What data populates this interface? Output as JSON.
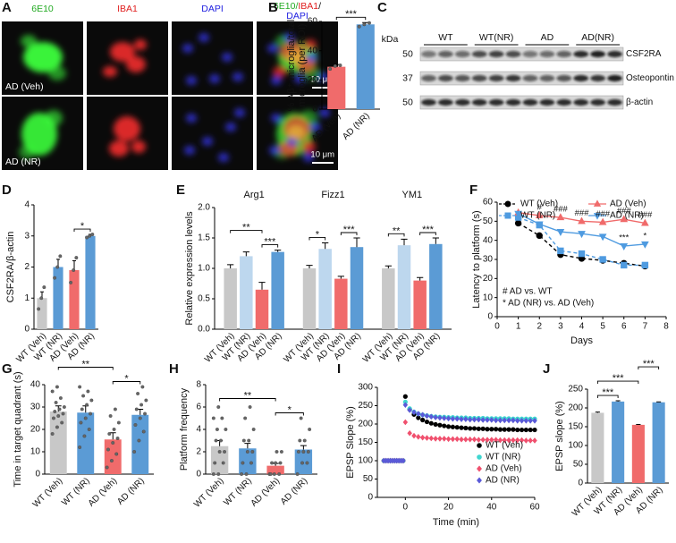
{
  "figure": {
    "panel_A": {
      "letter": "A",
      "channels": [
        "6E10",
        "IBA1",
        "DAPI"
      ],
      "channel_colors": [
        "#22aa22",
        "#e01e1e",
        "#1e1ee0"
      ],
      "merge_label": [
        "6E10/",
        "IBA1",
        "/",
        "DAPI"
      ],
      "rows": [
        "AD (Veh)",
        "AD (NR)"
      ],
      "scale_bar": "10 μm"
    },
    "panel_C": {
      "letter": "C",
      "unit": "kDa",
      "groups": [
        "WT",
        "WT(NR)",
        "AD",
        "AD(NR)"
      ],
      "blots": [
        {
          "protein": "CSF2RA",
          "kda": 50
        },
        {
          "protein": "Osteopontin",
          "kda": 37
        },
        {
          "protein": "β-actin",
          "kda": 50
        }
      ]
    }
  },
  "chart_data": [
    {
      "panel": "B",
      "type": "bar",
      "ylabel": [
        "% Aβ⁺ microglia/total",
        "microglia (per ROI)"
      ],
      "categories": [
        "AD (Veh)",
        "AD (NR)"
      ],
      "values": [
        29,
        58
      ],
      "errors": [
        1.5,
        1.2
      ],
      "points": [
        [
          27.5,
          29.5,
          30
        ],
        [
          56.5,
          58,
          59
        ]
      ],
      "colors": [
        "#f06b6b",
        "#5b9bd5"
      ],
      "ylim": [
        0,
        60
      ],
      "yticks": [
        0,
        20,
        40,
        60
      ],
      "significance": [
        {
          "between": [
            "AD (Veh)",
            "AD (NR)"
          ],
          "label": "***"
        }
      ]
    },
    {
      "panel": "D",
      "type": "bar",
      "ylabel": "CSF2RA/β-actin",
      "categories": [
        "WT (Veh)",
        "WT (NR)",
        "AD (Veh)",
        "AD (NR)"
      ],
      "values": [
        1.0,
        2.0,
        1.9,
        3.0
      ],
      "errors": [
        0.2,
        0.25,
        0.3,
        0.05
      ],
      "points": [
        [
          0.65,
          1.0,
          1.35
        ],
        [
          1.65,
          2.0,
          2.35
        ],
        [
          1.5,
          1.9,
          2.3
        ],
        [
          2.95,
          3.0,
          3.05
        ]
      ],
      "colors": [
        "#c8c8c8",
        "#5b9bd5",
        "#f06b6b",
        "#5b9bd5"
      ],
      "ylim": [
        0,
        4
      ],
      "yticks": [
        0,
        1,
        2,
        3,
        4
      ],
      "significance": [
        {
          "between": [
            "AD (Veh)",
            "AD (NR)"
          ],
          "label": "*"
        }
      ]
    },
    {
      "panel": "E",
      "type": "grouped_bar",
      "ylabel": "Relative expression levels",
      "categories": [
        "Arg1",
        "Fizz1",
        "YM1"
      ],
      "series": [
        {
          "name": "WT (Veh)",
          "color": "#c8c8c8",
          "values": [
            1.0,
            1.0,
            1.0
          ],
          "errors": [
            0.06,
            0.05,
            0.04
          ]
        },
        {
          "name": "WT (NR)",
          "color": "#bdd7ee",
          "values": [
            1.2,
            1.32,
            1.38
          ],
          "errors": [
            0.07,
            0.1,
            0.1
          ]
        },
        {
          "name": "AD (Veh)",
          "color": "#f06b6b",
          "values": [
            0.65,
            0.83,
            0.8
          ],
          "errors": [
            0.12,
            0.04,
            0.05
          ]
        },
        {
          "name": "AD (NR)",
          "color": "#5b9bd5",
          "values": [
            1.27,
            1.35,
            1.4
          ],
          "errors": [
            0.03,
            0.15,
            0.1
          ]
        }
      ],
      "ylim": [
        0,
        2
      ],
      "yticks": [
        {
          "value": 0,
          "label": "0.0"
        },
        0.5,
        {
          "value": 1,
          "label": "1.0"
        },
        1.5,
        {
          "value": 2,
          "label": "2.0"
        }
      ],
      "significance": [
        {
          "category": "Arg1",
          "between": [
            "AD (Veh)",
            "AD (NR)"
          ],
          "label": "***"
        },
        {
          "category": "Arg1",
          "between": [
            "WT (Veh)",
            "AD (Veh)"
          ],
          "label": "**"
        },
        {
          "category": "Fizz1",
          "between": [
            "WT (Veh)",
            "WT (NR)"
          ],
          "label": "*"
        },
        {
          "category": "Fizz1",
          "between": [
            "AD (Veh)",
            "AD (NR)"
          ],
          "label": "***"
        },
        {
          "category": "YM1",
          "between": [
            "WT (Veh)",
            "WT (NR)"
          ],
          "label": "**"
        },
        {
          "category": "YM1",
          "between": [
            "AD (Veh)",
            "AD (NR)"
          ],
          "label": "***"
        }
      ]
    },
    {
      "panel": "F",
      "type": "line",
      "xlabel": "Days",
      "ylabel": "Latency to platform (s)",
      "x": [
        1,
        2,
        3,
        4,
        5,
        6,
        7
      ],
      "xlim": [
        0,
        8
      ],
      "xticks": [
        0,
        1,
        2,
        3,
        4,
        5,
        6,
        7,
        8
      ],
      "ylim": [
        0,
        60
      ],
      "yticks": [
        0,
        10,
        20,
        30,
        40,
        50,
        60
      ],
      "legend": "top",
      "series": [
        {
          "name": "WT (Veh)",
          "color": "#000000",
          "marker": "circle",
          "dashed": true,
          "values": [
            49,
            42.5,
            32.5,
            30.5,
            29.5,
            28,
            26.5
          ]
        },
        {
          "name": "WT (NR)",
          "color": "#4f9be0",
          "marker": "square",
          "dashed": true,
          "values": [
            52,
            48,
            34.5,
            33,
            30,
            27,
            27
          ]
        },
        {
          "name": "AD (Veh)",
          "color": "#f06b6b",
          "marker": "triangle-up",
          "dashed": false,
          "values": [
            54.5,
            53,
            52,
            50,
            49.5,
            51,
            49
          ]
        },
        {
          "name": "AD (NR)",
          "color": "#4f9be0",
          "marker": "triangle-down",
          "dashed": false,
          "values": [
            54,
            48.5,
            44.5,
            43.5,
            42,
            37,
            38
          ]
        }
      ],
      "significance": [
        {
          "x": 2,
          "series": "AD (Veh)",
          "label": "#"
        },
        {
          "x": 3,
          "series": "AD (Veh)",
          "label": "###"
        },
        {
          "x": 4,
          "series": "AD (Veh)",
          "label": "###"
        },
        {
          "x": 5,
          "series": "AD (Veh)",
          "label": "###"
        },
        {
          "x": 6,
          "series": "AD (Veh)",
          "label": "###"
        },
        {
          "x": 7,
          "series": "AD (Veh)",
          "label": "###"
        },
        {
          "x": 6,
          "series": "AD (NR)",
          "label": "***"
        },
        {
          "x": 7,
          "series": "AD (NR)",
          "label": "*"
        }
      ],
      "notes": [
        "# AD vs. WT",
        "* AD (NR) vs. AD (Veh)"
      ]
    },
    {
      "panel": "G",
      "type": "bar",
      "ylabel": "Time in target quadrant (s)",
      "categories": [
        "WT (Veh)",
        "WT (NR)",
        "AD (Veh)",
        "AD (NR)"
      ],
      "values": [
        28,
        27.5,
        15.5,
        26.5
      ],
      "errors": [
        2.5,
        3,
        3,
        2.5
      ],
      "points": [
        [
          18,
          21,
          23,
          25,
          26,
          27,
          28,
          29,
          30,
          32,
          34,
          37,
          39
        ],
        [
          12,
          17,
          20,
          23,
          25,
          27,
          29,
          31,
          33,
          35,
          37,
          39
        ],
        [
          3,
          6,
          9,
          11,
          14,
          16,
          18,
          20,
          23,
          26,
          29
        ],
        [
          10,
          15,
          19,
          22,
          25,
          27,
          29,
          31,
          33,
          36,
          39
        ]
      ],
      "colors": [
        "#c8c8c8",
        "#5b9bd5",
        "#f06b6b",
        "#5b9bd5"
      ],
      "ylim": [
        0,
        40
      ],
      "yticks": [
        0,
        10,
        20,
        30,
        40
      ],
      "significance": [
        {
          "between": [
            "AD (Veh)",
            "AD (NR)"
          ],
          "label": "*"
        },
        {
          "between": [
            "WT (Veh)",
            "AD (Veh)"
          ],
          "label": "**"
        }
      ]
    },
    {
      "panel": "H",
      "type": "bar",
      "ylabel": "Platform frequency",
      "categories": [
        "WT (Veh)",
        "WT (NR)",
        "AD (Veh)",
        "AD (NR)"
      ],
      "values": [
        2.5,
        2.3,
        0.75,
        2.2
      ],
      "errors": [
        0.5,
        0.45,
        0.2,
        0.35
      ],
      "points": [
        [
          0,
          0,
          1,
          1,
          2,
          2,
          3,
          3,
          4,
          4,
          5,
          5,
          6
        ],
        [
          0,
          0,
          1,
          1,
          2,
          2,
          3,
          3,
          4,
          5,
          6
        ],
        [
          0,
          0,
          0,
          0,
          1,
          1,
          1,
          2,
          2
        ],
        [
          0,
          1,
          1,
          2,
          2,
          2,
          3,
          3,
          4,
          5
        ]
      ],
      "colors": [
        "#c8c8c8",
        "#5b9bd5",
        "#f06b6b",
        "#5b9bd5"
      ],
      "ylim": [
        0,
        8
      ],
      "yticks": [
        0,
        2,
        4,
        6,
        8
      ],
      "significance": [
        {
          "between": [
            "AD (Veh)",
            "AD (NR)"
          ],
          "label": "*"
        },
        {
          "between": [
            "WT (Veh)",
            "AD (Veh)"
          ],
          "label": "**"
        }
      ]
    },
    {
      "panel": "I",
      "type": "scatter",
      "xlabel": "Time (min)",
      "ylabel": "EPSP Slope (%)",
      "x": [
        -10,
        -9,
        -8,
        -7,
        -6,
        -5,
        -4,
        -3,
        -2,
        -1,
        0,
        2,
        4,
        6,
        8,
        10,
        12,
        14,
        16,
        18,
        20,
        22,
        24,
        26,
        28,
        30,
        32,
        34,
        36,
        38,
        40,
        42,
        44,
        46,
        48,
        50,
        52,
        54,
        56,
        58,
        60
      ],
      "xlim": [
        -13,
        60
      ],
      "xticks": [
        0,
        20,
        40,
        60
      ],
      "ylim": [
        0,
        300
      ],
      "yticks": [
        0,
        50,
        100,
        150,
        200,
        250,
        300
      ],
      "legend": "bottom-right",
      "series": [
        {
          "name": "WT (Veh)",
          "color": "#000000",
          "marker": "circle",
          "values": [
            100,
            100,
            100,
            100,
            100,
            100,
            100,
            100,
            100,
            100,
            275,
            240,
            226,
            217,
            211,
            206,
            202,
            199,
            197,
            195,
            193,
            192,
            191,
            190,
            189,
            188,
            188,
            187,
            187,
            186,
            186,
            186,
            185,
            185,
            185,
            185,
            184,
            184,
            184,
            184,
            184
          ]
        },
        {
          "name": "WT (NR)",
          "color": "#3fd6d0",
          "marker": "circle",
          "values": [
            100,
            100,
            100,
            100,
            100,
            100,
            100,
            100,
            100,
            100,
            260,
            242,
            233,
            228,
            225,
            223,
            221,
            220,
            219,
            219,
            218,
            218,
            217,
            217,
            217,
            216,
            216,
            216,
            216,
            215,
            215,
            215,
            215,
            215,
            215,
            214,
            214,
            214,
            214,
            214,
            214
          ]
        },
        {
          "name": "AD (Veh)",
          "color": "#f0506e",
          "marker": "diamond",
          "values": [
            100,
            100,
            100,
            100,
            100,
            100,
            100,
            100,
            100,
            100,
            205,
            175,
            168,
            165,
            163,
            162,
            161,
            160,
            160,
            160,
            159,
            159,
            159,
            158,
            158,
            158,
            158,
            157,
            157,
            157,
            157,
            157,
            156,
            156,
            156,
            156,
            156,
            156,
            155,
            155,
            155
          ]
        },
        {
          "name": "AD (NR)",
          "color": "#5a5ad8",
          "marker": "diamond",
          "values": [
            100,
            100,
            100,
            100,
            100,
            100,
            100,
            100,
            100,
            100,
            252,
            238,
            232,
            228,
            225,
            222,
            220,
            218,
            217,
            216,
            215,
            214,
            214,
            213,
            213,
            212,
            212,
            212,
            211,
            211,
            211,
            210,
            210,
            210,
            210,
            210,
            209,
            209,
            209,
            209,
            209
          ]
        }
      ]
    },
    {
      "panel": "J",
      "type": "bar",
      "ylabel": "EPSP slope (%)",
      "categories": [
        "WT (Veh)",
        "WT (NR)",
        "AD (Veh)",
        "AD (NR)"
      ],
      "values": [
        187,
        217,
        155,
        215
      ],
      "errors": [
        2,
        2,
        1,
        1
      ],
      "colors": [
        "#c8c8c8",
        "#5b9bd5",
        "#f06b6b",
        "#5b9bd5"
      ],
      "ylim": [
        0,
        250
      ],
      "yticks": [
        0,
        50,
        100,
        150,
        200,
        250
      ],
      "significance": [
        {
          "between": [
            "WT (Veh)",
            "WT (NR)"
          ],
          "label": "***"
        },
        {
          "between": [
            "WT (Veh)",
            "AD (Veh)"
          ],
          "label": "***"
        },
        {
          "between": [
            "AD (Veh)",
            "AD (NR)"
          ],
          "label": "***"
        }
      ]
    }
  ]
}
